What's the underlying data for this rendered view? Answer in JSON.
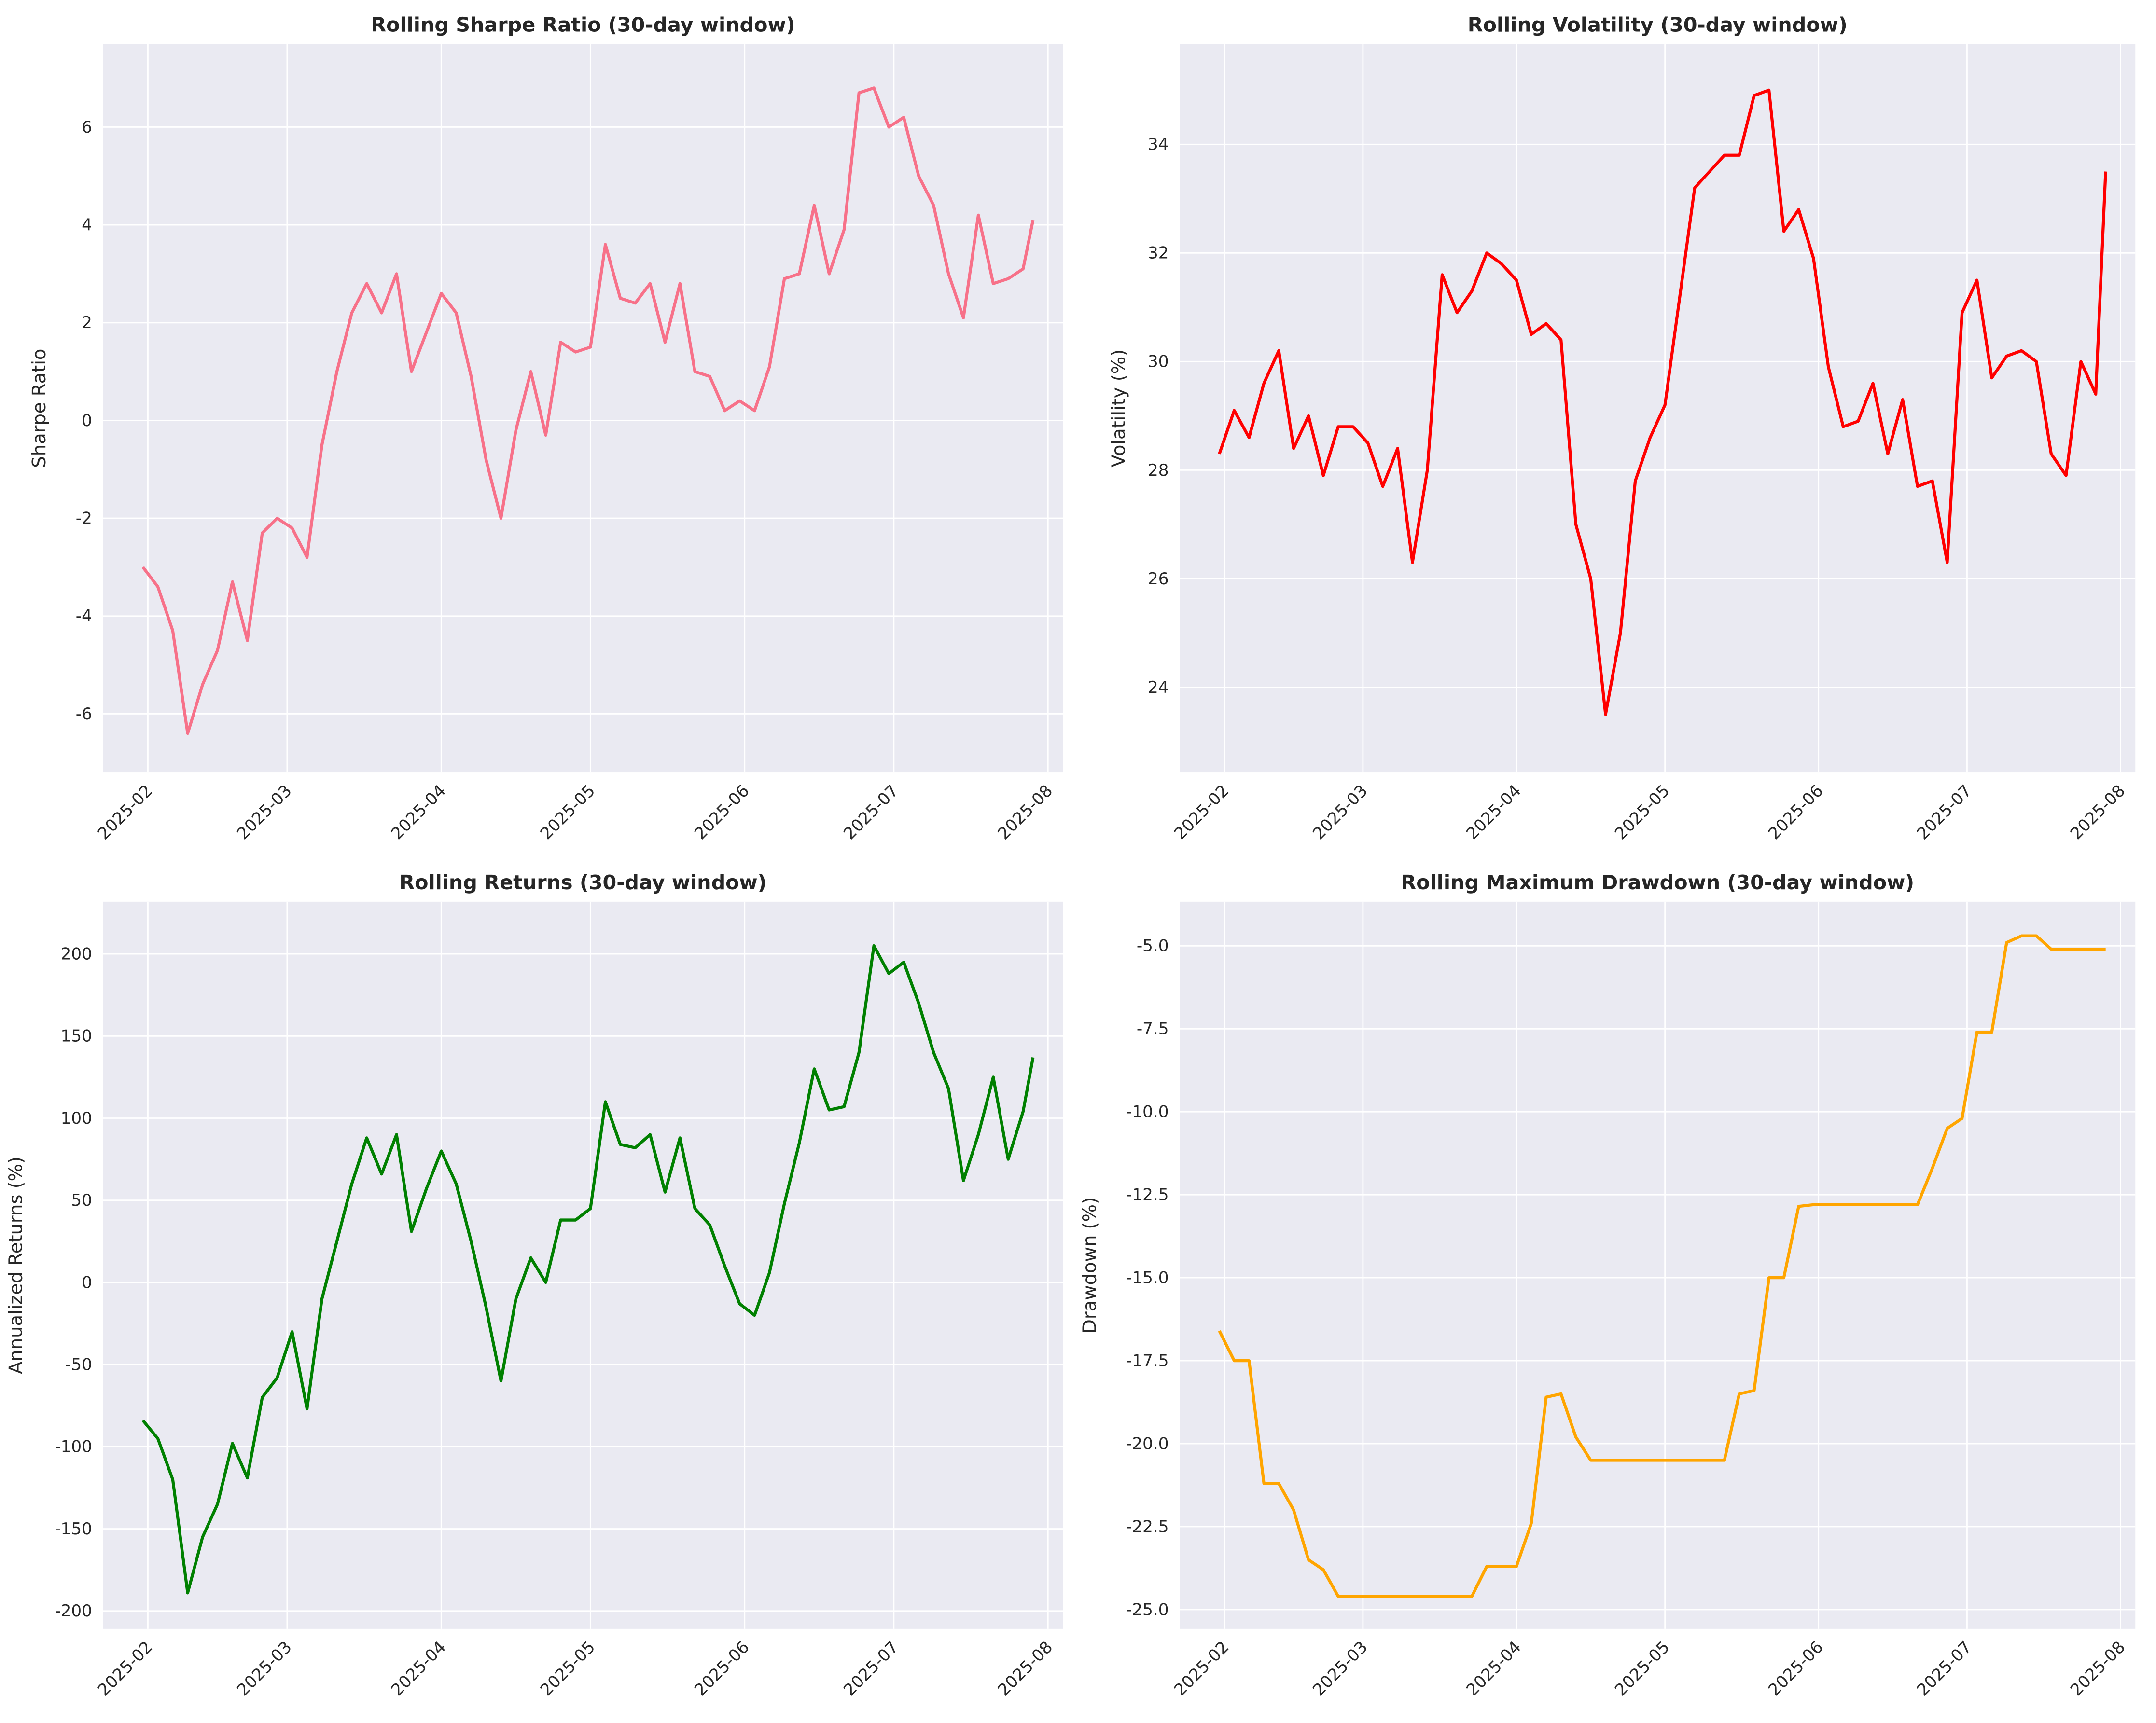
{
  "chart_data": [
    {
      "type": "line",
      "title": "Rolling Sharpe Ratio (30-day window)",
      "ylabel": "Sharpe Ratio",
      "color": "#f77189",
      "x": [
        "2025-01-31",
        "2025-02-03",
        "2025-02-06",
        "2025-02-09",
        "2025-02-12",
        "2025-02-15",
        "2025-02-18",
        "2025-02-21",
        "2025-02-24",
        "2025-02-27",
        "2025-03-02",
        "2025-03-05",
        "2025-03-08",
        "2025-03-11",
        "2025-03-14",
        "2025-03-17",
        "2025-03-20",
        "2025-03-23",
        "2025-03-26",
        "2025-03-29",
        "2025-04-01",
        "2025-04-04",
        "2025-04-07",
        "2025-04-10",
        "2025-04-13",
        "2025-04-16",
        "2025-04-19",
        "2025-04-22",
        "2025-04-25",
        "2025-04-28",
        "2025-05-01",
        "2025-05-04",
        "2025-05-07",
        "2025-05-10",
        "2025-05-13",
        "2025-05-16",
        "2025-05-19",
        "2025-05-22",
        "2025-05-25",
        "2025-05-28",
        "2025-05-31",
        "2025-06-03",
        "2025-06-06",
        "2025-06-09",
        "2025-06-12",
        "2025-06-15",
        "2025-06-18",
        "2025-06-21",
        "2025-06-24",
        "2025-06-27",
        "2025-06-30",
        "2025-07-03",
        "2025-07-06",
        "2025-07-09",
        "2025-07-12",
        "2025-07-15",
        "2025-07-18",
        "2025-07-21",
        "2025-07-24",
        "2025-07-27",
        "2025-07-29"
      ],
      "values": [
        -3.0,
        -3.4,
        -4.3,
        -6.4,
        -5.4,
        -4.7,
        -3.3,
        -4.5,
        -2.3,
        -2.0,
        -2.2,
        -2.8,
        -0.5,
        1.0,
        2.2,
        2.8,
        2.2,
        3.0,
        1.0,
        1.8,
        2.6,
        2.2,
        0.9,
        -0.8,
        -2.0,
        -0.2,
        1.0,
        -0.3,
        1.6,
        1.4,
        1.5,
        3.6,
        2.5,
        2.4,
        2.8,
        1.6,
        2.8,
        1.0,
        0.9,
        0.2,
        0.4,
        0.2,
        1.1,
        2.9,
        3.0,
        4.4,
        3.0,
        3.9,
        6.7,
        6.8,
        6.0,
        6.2,
        5.0,
        4.4,
        3.0,
        2.1,
        4.2,
        2.8,
        2.9,
        3.1,
        4.1
      ],
      "xlim": [
        "2025-01-23",
        "2025-08-04"
      ],
      "xticks": [
        {
          "value": "2025-02-01",
          "label": "2025-02"
        },
        {
          "value": "2025-03-01",
          "label": "2025-03"
        },
        {
          "value": "2025-04-01",
          "label": "2025-04"
        },
        {
          "value": "2025-05-01",
          "label": "2025-05"
        },
        {
          "value": "2025-06-01",
          "label": "2025-06"
        },
        {
          "value": "2025-07-01",
          "label": "2025-07"
        },
        {
          "value": "2025-08-01",
          "label": "2025-08"
        }
      ],
      "ylim": [
        -7.2,
        7.7
      ],
      "yticks": [
        -6,
        -4,
        -2,
        0,
        2,
        4,
        6
      ],
      "grid": true
    },
    {
      "type": "line",
      "title": "Rolling Volatility (30-day window)",
      "ylabel": "Volatility (%)",
      "color": "#ff0000",
      "x": [
        "2025-01-31",
        "2025-02-03",
        "2025-02-06",
        "2025-02-09",
        "2025-02-12",
        "2025-02-15",
        "2025-02-18",
        "2025-02-21",
        "2025-02-24",
        "2025-02-27",
        "2025-03-02",
        "2025-03-05",
        "2025-03-08",
        "2025-03-11",
        "2025-03-14",
        "2025-03-17",
        "2025-03-20",
        "2025-03-23",
        "2025-03-26",
        "2025-03-29",
        "2025-04-01",
        "2025-04-04",
        "2025-04-07",
        "2025-04-10",
        "2025-04-13",
        "2025-04-16",
        "2025-04-19",
        "2025-04-22",
        "2025-04-25",
        "2025-04-28",
        "2025-05-01",
        "2025-05-04",
        "2025-05-07",
        "2025-05-10",
        "2025-05-13",
        "2025-05-16",
        "2025-05-19",
        "2025-05-22",
        "2025-05-25",
        "2025-05-28",
        "2025-05-31",
        "2025-06-03",
        "2025-06-06",
        "2025-06-09",
        "2025-06-12",
        "2025-06-15",
        "2025-06-18",
        "2025-06-21",
        "2025-06-24",
        "2025-06-27",
        "2025-06-30",
        "2025-07-03",
        "2025-07-06",
        "2025-07-09",
        "2025-07-12",
        "2025-07-15",
        "2025-07-18",
        "2025-07-21",
        "2025-07-24",
        "2025-07-27",
        "2025-07-29"
      ],
      "values": [
        28.3,
        29.1,
        28.6,
        29.6,
        30.2,
        28.4,
        29.0,
        27.9,
        28.8,
        28.8,
        28.5,
        27.7,
        28.4,
        26.3,
        28.0,
        31.6,
        30.9,
        31.3,
        32.0,
        31.8,
        31.5,
        30.5,
        30.7,
        30.4,
        27.0,
        26.0,
        23.5,
        25.0,
        27.8,
        28.6,
        29.2,
        31.2,
        33.2,
        33.5,
        33.8,
        33.8,
        34.9,
        35.0,
        32.4,
        32.8,
        31.9,
        29.9,
        28.8,
        28.9,
        29.6,
        28.3,
        29.3,
        27.7,
        27.8,
        26.3,
        30.9,
        31.5,
        29.7,
        30.1,
        30.2,
        30.0,
        28.3,
        27.9,
        30.0,
        29.4,
        33.5
      ],
      "xlim": [
        "2025-01-23",
        "2025-08-04"
      ],
      "xticks": [
        {
          "value": "2025-02-01",
          "label": "2025-02"
        },
        {
          "value": "2025-03-01",
          "label": "2025-03"
        },
        {
          "value": "2025-04-01",
          "label": "2025-04"
        },
        {
          "value": "2025-05-01",
          "label": "2025-05"
        },
        {
          "value": "2025-06-01",
          "label": "2025-06"
        },
        {
          "value": "2025-07-01",
          "label": "2025-07"
        },
        {
          "value": "2025-08-01",
          "label": "2025-08"
        }
      ],
      "ylim": [
        22.43,
        35.85
      ],
      "yticks": [
        24,
        26,
        28,
        30,
        32,
        34
      ],
      "grid": true
    },
    {
      "type": "line",
      "title": "Rolling Returns (30-day window)",
      "ylabel": "Annualized Returns (%)",
      "color": "#008000",
      "x": [
        "2025-01-31",
        "2025-02-03",
        "2025-02-06",
        "2025-02-09",
        "2025-02-12",
        "2025-02-15",
        "2025-02-18",
        "2025-02-21",
        "2025-02-24",
        "2025-02-27",
        "2025-03-02",
        "2025-03-05",
        "2025-03-08",
        "2025-03-11",
        "2025-03-14",
        "2025-03-17",
        "2025-03-20",
        "2025-03-23",
        "2025-03-26",
        "2025-03-29",
        "2025-04-01",
        "2025-04-04",
        "2025-04-07",
        "2025-04-10",
        "2025-04-13",
        "2025-04-16",
        "2025-04-19",
        "2025-04-22",
        "2025-04-25",
        "2025-04-28",
        "2025-05-01",
        "2025-05-04",
        "2025-05-07",
        "2025-05-10",
        "2025-05-13",
        "2025-05-16",
        "2025-05-19",
        "2025-05-22",
        "2025-05-25",
        "2025-05-28",
        "2025-05-31",
        "2025-06-03",
        "2025-06-06",
        "2025-06-09",
        "2025-06-12",
        "2025-06-15",
        "2025-06-18",
        "2025-06-21",
        "2025-06-24",
        "2025-06-27",
        "2025-06-30",
        "2025-07-03",
        "2025-07-06",
        "2025-07-09",
        "2025-07-12",
        "2025-07-15",
        "2025-07-18",
        "2025-07-21",
        "2025-07-24",
        "2025-07-27",
        "2025-07-29"
      ],
      "values": [
        -84,
        -95,
        -120,
        -189,
        -155,
        -135,
        -98,
        -119,
        -70,
        -58,
        -30,
        -77,
        -10,
        25,
        60,
        88,
        66,
        90,
        31,
        57,
        80,
        60,
        25,
        -15,
        -60,
        -10,
        15,
        0,
        38,
        38,
        45,
        110,
        84,
        82,
        90,
        55,
        88,
        45,
        35,
        10,
        -13,
        -20,
        6,
        48,
        85,
        130,
        105,
        107,
        140,
        205,
        188,
        195,
        170,
        140,
        118,
        62,
        90,
        125,
        75,
        104,
        137
      ],
      "xlim": [
        "2025-01-23",
        "2025-08-04"
      ],
      "xticks": [
        {
          "value": "2025-02-01",
          "label": "2025-02"
        },
        {
          "value": "2025-03-01",
          "label": "2025-03"
        },
        {
          "value": "2025-04-01",
          "label": "2025-04"
        },
        {
          "value": "2025-05-01",
          "label": "2025-05"
        },
        {
          "value": "2025-06-01",
          "label": "2025-06"
        },
        {
          "value": "2025-07-01",
          "label": "2025-07"
        },
        {
          "value": "2025-08-01",
          "label": "2025-08"
        }
      ],
      "ylim": [
        -210.9,
        231.8
      ],
      "yticks": [
        -200,
        -150,
        -100,
        -50,
        0,
        50,
        100,
        150,
        200
      ],
      "grid": true
    },
    {
      "type": "line",
      "title": "Rolling Maximum Drawdown (30-day window)",
      "ylabel": "Drawdown (%)",
      "color": "#ffa500",
      "x": [
        "2025-01-31",
        "2025-02-03",
        "2025-02-06",
        "2025-02-09",
        "2025-02-12",
        "2025-02-15",
        "2025-02-18",
        "2025-02-21",
        "2025-02-24",
        "2025-02-27",
        "2025-03-02",
        "2025-03-05",
        "2025-03-08",
        "2025-03-11",
        "2025-03-14",
        "2025-03-17",
        "2025-03-20",
        "2025-03-23",
        "2025-03-26",
        "2025-03-29",
        "2025-04-01",
        "2025-04-04",
        "2025-04-07",
        "2025-04-10",
        "2025-04-13",
        "2025-04-16",
        "2025-04-19",
        "2025-04-22",
        "2025-04-25",
        "2025-04-28",
        "2025-05-01",
        "2025-05-04",
        "2025-05-07",
        "2025-05-10",
        "2025-05-13",
        "2025-05-16",
        "2025-05-19",
        "2025-05-22",
        "2025-05-25",
        "2025-05-28",
        "2025-05-31",
        "2025-06-03",
        "2025-06-06",
        "2025-06-09",
        "2025-06-12",
        "2025-06-15",
        "2025-06-18",
        "2025-06-21",
        "2025-06-24",
        "2025-06-27",
        "2025-06-30",
        "2025-07-03",
        "2025-07-06",
        "2025-07-09",
        "2025-07-12",
        "2025-07-15",
        "2025-07-18",
        "2025-07-21",
        "2025-07-24",
        "2025-07-27",
        "2025-07-29"
      ],
      "values": [
        -16.6,
        -17.5,
        -17.5,
        -21.2,
        -21.2,
        -22.0,
        -23.5,
        -23.8,
        -24.6,
        -24.6,
        -24.6,
        -24.6,
        -24.6,
        -24.6,
        -24.6,
        -24.6,
        -24.6,
        -24.6,
        -23.7,
        -23.7,
        -23.7,
        -22.4,
        -18.6,
        -18.5,
        -19.8,
        -20.5,
        -20.5,
        -20.5,
        -20.5,
        -20.5,
        -20.5,
        -20.5,
        -20.5,
        -20.5,
        -20.5,
        -18.5,
        -18.4,
        -15.0,
        -15.0,
        -12.85,
        -12.8,
        -12.8,
        -12.8,
        -12.8,
        -12.8,
        -12.8,
        -12.8,
        -12.8,
        -11.7,
        -10.5,
        -10.2,
        -7.6,
        -7.6,
        -4.9,
        -4.7,
        -4.7,
        -5.1,
        -5.1,
        -5.1,
        -5.1,
        -5.1
      ],
      "xlim": [
        "2025-01-23",
        "2025-08-04"
      ],
      "xticks": [
        {
          "value": "2025-02-01",
          "label": "2025-02"
        },
        {
          "value": "2025-03-01",
          "label": "2025-03"
        },
        {
          "value": "2025-04-01",
          "label": "2025-04"
        },
        {
          "value": "2025-05-01",
          "label": "2025-05"
        },
        {
          "value": "2025-06-01",
          "label": "2025-06"
        },
        {
          "value": "2025-07-01",
          "label": "2025-07"
        },
        {
          "value": "2025-08-01",
          "label": "2025-08"
        }
      ],
      "ylim": [
        -25.58,
        -3.67
      ],
      "yticks": [
        {
          "value": -25,
          "label": "-25.0"
        },
        {
          "value": -22.5,
          "label": "-22.5"
        },
        {
          "value": -20,
          "label": "-20.0"
        },
        {
          "value": -17.5,
          "label": "-17.5"
        },
        {
          "value": -15,
          "label": "-15.0"
        },
        {
          "value": -12.5,
          "label": "-12.5"
        },
        {
          "value": -10,
          "label": "-10.0"
        },
        {
          "value": -7.5,
          "label": "-7.5"
        },
        {
          "value": -5,
          "label": "-5.0"
        }
      ],
      "grid": true
    }
  ]
}
